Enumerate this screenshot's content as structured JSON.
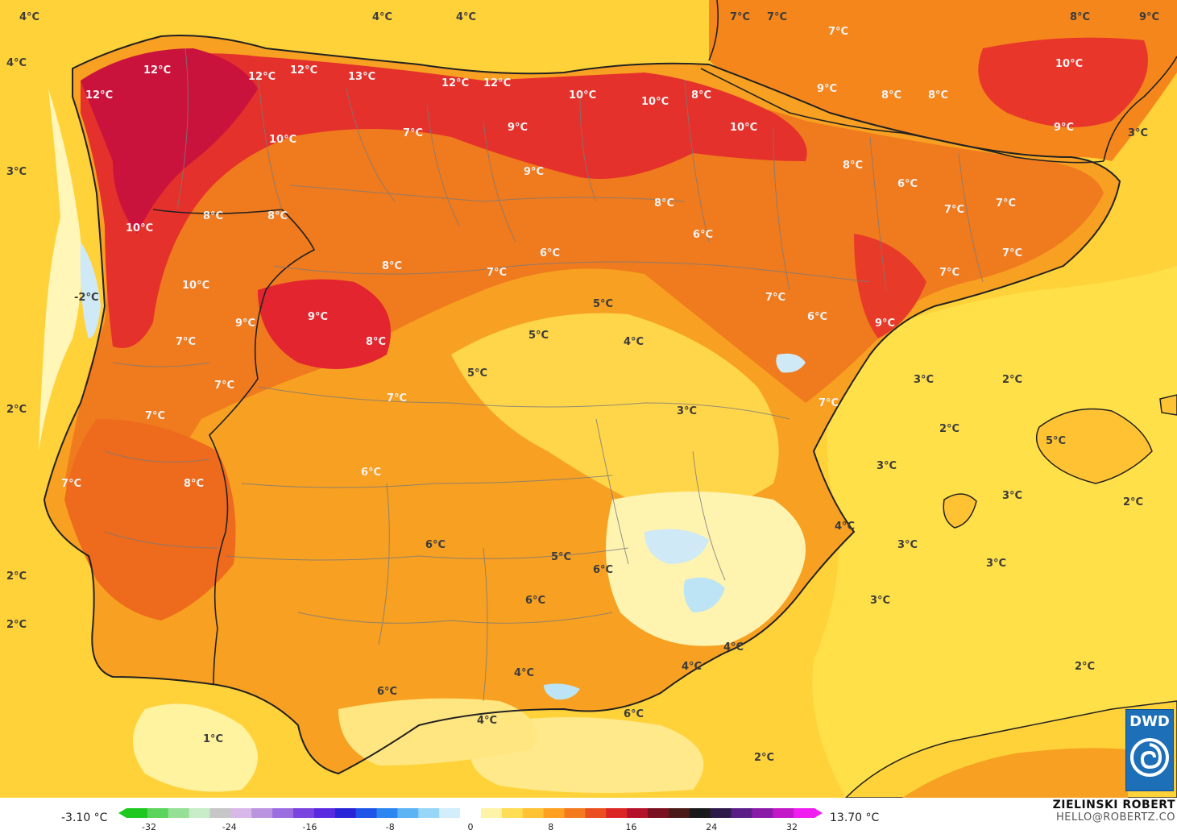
{
  "colors": {
    "sea": "#ffd23a",
    "sea_light": "#fff199",
    "land_base": "#f7a021",
    "warm": "#f06a1c",
    "hot": "#e2252f",
    "hottest": "#c9133d",
    "cold_white": "#ffffff",
    "cold_blue": "#bde4f4",
    "border_line": "#222222"
  },
  "labels": [
    {
      "text": "4°C",
      "tone": "light"
    },
    {
      "text": "4°C",
      "tone": "light"
    },
    {
      "text": "4°C",
      "tone": "light"
    },
    {
      "text": "4°C",
      "tone": "light"
    },
    {
      "text": "3°C",
      "tone": "light"
    },
    {
      "text": "2°C",
      "tone": "light"
    },
    {
      "text": "2°C",
      "tone": "light"
    },
    {
      "text": "2°C",
      "tone": "light"
    },
    {
      "text": "1°C",
      "tone": "light"
    },
    {
      "text": "7°C",
      "tone": "light"
    },
    {
      "text": "7°C",
      "tone": "light"
    },
    {
      "text": "8°C",
      "tone": "light"
    },
    {
      "text": "9°C",
      "tone": "light"
    },
    {
      "text": "12°C",
      "tone": "dark"
    },
    {
      "text": "12°C",
      "tone": "dark"
    },
    {
      "text": "12°C",
      "tone": "dark"
    },
    {
      "text": "12°C",
      "tone": "dark"
    },
    {
      "text": "13°C",
      "tone": "dark"
    },
    {
      "text": "12°C",
      "tone": "dark"
    },
    {
      "text": "12°C",
      "tone": "dark"
    },
    {
      "text": "10°C",
      "tone": "dark"
    },
    {
      "text": "10°C",
      "tone": "dark"
    },
    {
      "text": "7°C",
      "tone": "dark"
    },
    {
      "text": "9°C",
      "tone": "dark"
    },
    {
      "text": "10°C",
      "tone": "dark"
    },
    {
      "text": "10°C",
      "tone": "dark"
    },
    {
      "text": "8°C",
      "tone": "dark"
    },
    {
      "text": "7°C",
      "tone": "dark"
    },
    {
      "text": "9°C",
      "tone": "dark"
    },
    {
      "text": "8°C",
      "tone": "dark"
    },
    {
      "text": "8°C",
      "tone": "dark"
    },
    {
      "text": "10°C",
      "tone": "dark"
    },
    {
      "text": "9°C",
      "tone": "dark"
    },
    {
      "text": "8°C",
      "tone": "dark"
    },
    {
      "text": "3°C",
      "tone": "light"
    },
    {
      "text": "9°C",
      "tone": "dark"
    },
    {
      "text": "8°C",
      "tone": "dark"
    },
    {
      "text": "8°C",
      "tone": "dark"
    },
    {
      "text": "8°C",
      "tone": "dark"
    },
    {
      "text": "6°C",
      "tone": "dark"
    },
    {
      "text": "7°C",
      "tone": "dark"
    },
    {
      "text": "7°C",
      "tone": "dark"
    },
    {
      "text": "10°C",
      "tone": "dark"
    },
    {
      "text": "8°C",
      "tone": "dark"
    },
    {
      "text": "6°C",
      "tone": "dark"
    },
    {
      "text": "7°C",
      "tone": "dark"
    },
    {
      "text": "6°C",
      "tone": "dark"
    },
    {
      "text": "7°C",
      "tone": "dark"
    },
    {
      "text": "10°C",
      "tone": "dark"
    },
    {
      "text": "-2°C",
      "tone": "light"
    },
    {
      "text": "9°C",
      "tone": "dark"
    },
    {
      "text": "9°C",
      "tone": "dark"
    },
    {
      "text": "8°C",
      "tone": "dark"
    },
    {
      "text": "5°C",
      "tone": "light"
    },
    {
      "text": "5°C",
      "tone": "light"
    },
    {
      "text": "4°C",
      "tone": "light"
    },
    {
      "text": "7°C",
      "tone": "dark"
    },
    {
      "text": "6°C",
      "tone": "dark"
    },
    {
      "text": "9°C",
      "tone": "dark"
    },
    {
      "text": "7°C",
      "tone": "dark"
    },
    {
      "text": "5°C",
      "tone": "light"
    },
    {
      "text": "7°C",
      "tone": "dark"
    },
    {
      "text": "3°C",
      "tone": "light"
    },
    {
      "text": "7°C",
      "tone": "dark"
    },
    {
      "text": "3°C",
      "tone": "light"
    },
    {
      "text": "2°C",
      "tone": "light"
    },
    {
      "text": "2°C",
      "tone": "light"
    },
    {
      "text": "5°C",
      "tone": "light"
    },
    {
      "text": "7°C",
      "tone": "dark"
    },
    {
      "text": "6°C",
      "tone": "dark"
    },
    {
      "text": "3°C",
      "tone": "light"
    },
    {
      "text": "7°C",
      "tone": "dark"
    },
    {
      "text": "7°C",
      "tone": "dark"
    },
    {
      "text": "7°C",
      "tone": "dark"
    },
    {
      "text": "8°C",
      "tone": "dark"
    },
    {
      "text": "3°C",
      "tone": "light"
    },
    {
      "text": "2°C",
      "tone": "light"
    },
    {
      "text": "6°C",
      "tone": "light"
    },
    {
      "text": "5°C",
      "tone": "light"
    },
    {
      "text": "6°C",
      "tone": "light"
    },
    {
      "text": "6°C",
      "tone": "light"
    },
    {
      "text": "4°C",
      "tone": "light"
    },
    {
      "text": "3°C",
      "tone": "light"
    },
    {
      "text": "3°C",
      "tone": "light"
    },
    {
      "text": "3°C",
      "tone": "light"
    },
    {
      "text": "4°C",
      "tone": "light"
    },
    {
      "text": "4°C",
      "tone": "light"
    },
    {
      "text": "4°C",
      "tone": "light"
    },
    {
      "text": "6°C",
      "tone": "light"
    },
    {
      "text": "2°C",
      "tone": "light"
    },
    {
      "text": "4°C",
      "tone": "light"
    },
    {
      "text": "6°C",
      "tone": "light"
    },
    {
      "text": "2°C",
      "tone": "light"
    }
  ],
  "legend": {
    "min_value": "-3.10 °C",
    "max_value": "13.70 °C",
    "ticks": [
      "-32",
      "-24",
      "-16",
      "-8",
      "0",
      "8",
      "16",
      "24",
      "32"
    ],
    "colors": [
      "#1ec81e",
      "#5ad45a",
      "#95e095",
      "#c8ecc8",
      "#c6c6c6",
      "#d8b8e8",
      "#bb94e0",
      "#9a6ee0",
      "#7a44e0",
      "#5a2ae0",
      "#2a24d8",
      "#1f54e8",
      "#2b86f0",
      "#5cb4f4",
      "#98d6f8",
      "#d2eefb",
      "#ffffff",
      "#fff3a8",
      "#ffdd55",
      "#ffc233",
      "#ffa020",
      "#f57a1e",
      "#ec4f1f",
      "#dc2626",
      "#b3122a",
      "#7a0f20",
      "#4a1a18",
      "#1a1a1a",
      "#2e1a4a",
      "#5a1e86",
      "#8a1aa8",
      "#c218c8",
      "#f01cf0"
    ]
  },
  "author": {
    "name": "ZIELINSKI ROBERT",
    "email": "HELLO@ROBERTZ.CO"
  },
  "logo": {
    "text": "DWD"
  }
}
